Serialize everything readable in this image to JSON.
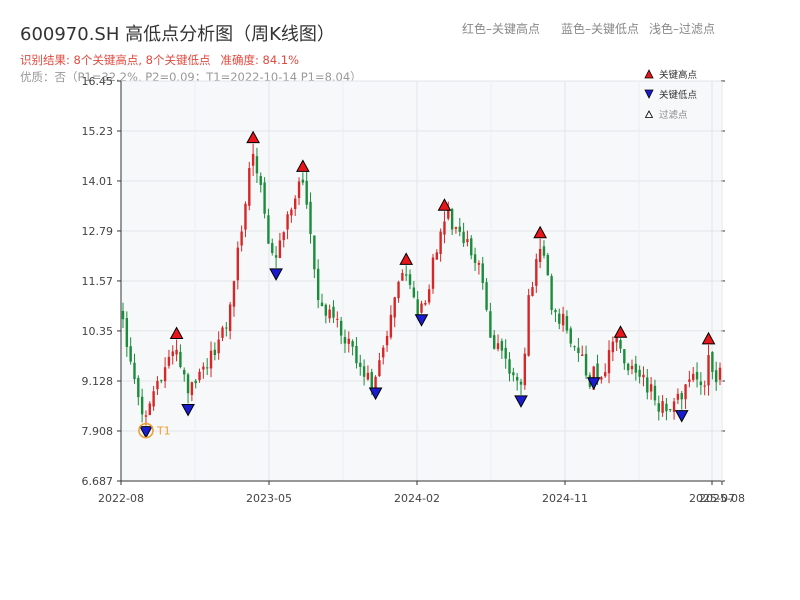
{
  "title": "600970.SH 高低点分析图（周K线图）",
  "legend_top": {
    "red": "红色–关键高点",
    "blue": "蓝色–关键低点",
    "light": "浅色–过滤点"
  },
  "subtitle": {
    "result": "识别结果: 8个关键高点, 8个关键低点",
    "accuracy": "准确度: 84.1%",
    "quality": "优质：否（P1=32.2%, P2=0.09；T1=2022-10-14 P1=8.04）"
  },
  "legend": {
    "high": "关键高点",
    "low": "关键低点",
    "filtered": "过滤点"
  },
  "colors": {
    "up": "#d62728",
    "down": "#1a8c3a",
    "high_marker": "#e8161b",
    "low_marker": "#1c1ccf",
    "t1_circle": "#f0a030"
  },
  "chart_data": {
    "type": "candlestick",
    "y_ticks": [
      "6.687",
      "7.908",
      "9.128",
      "10.35",
      "11.57",
      "12.79",
      "14.01",
      "15.23",
      "16.45"
    ],
    "ylim": [
      6.687,
      16.45
    ],
    "x_ticks": [
      "2022-08",
      "2023-05",
      "2024-02",
      "2024-11",
      "2025-07",
      "2025-08"
    ],
    "grid": true,
    "legend_position": "top-right",
    "weeks": 157,
    "t1_label": "T1",
    "t1": {
      "week": 6,
      "value": 8.04
    },
    "anchors": [
      [
        0,
        10.5
      ],
      [
        3,
        9.1
      ],
      [
        6,
        8.2
      ],
      [
        10,
        9.3
      ],
      [
        14,
        9.9
      ],
      [
        17,
        8.9
      ],
      [
        22,
        9.5
      ],
      [
        27,
        10.5
      ],
      [
        30,
        12.2
      ],
      [
        34,
        15.0
      ],
      [
        38,
        12.6
      ],
      [
        40,
        12.0
      ],
      [
        43,
        13.2
      ],
      [
        47,
        14.2
      ],
      [
        51,
        11.2
      ],
      [
        58,
        10.2
      ],
      [
        62,
        9.4
      ],
      [
        66,
        9.1
      ],
      [
        70,
        10.8
      ],
      [
        74,
        12.0
      ],
      [
        78,
        10.6
      ],
      [
        84,
        13.3
      ],
      [
        88,
        12.8
      ],
      [
        93,
        11.9
      ],
      [
        96,
        10.1
      ],
      [
        100,
        9.6
      ],
      [
        104,
        8.9
      ],
      [
        106,
        11.0
      ],
      [
        109,
        12.6
      ],
      [
        112,
        11.0
      ],
      [
        116,
        10.4
      ],
      [
        119,
        9.9
      ],
      [
        122,
        9.2
      ],
      [
        126,
        9.5
      ],
      [
        128,
        10.2
      ],
      [
        131,
        9.6
      ],
      [
        135,
        9.3
      ],
      [
        139,
        8.7
      ],
      [
        142,
        8.4
      ],
      [
        146,
        9.0
      ],
      [
        149,
        9.3
      ],
      [
        152,
        9.2
      ],
      [
        156,
        9.25
      ]
    ],
    "key_highs": [
      {
        "week": 14,
        "value": 10.14
      },
      {
        "week": 34,
        "value": 14.92
      },
      {
        "week": 47,
        "value": 14.22
      },
      {
        "week": 74,
        "value": 11.95
      },
      {
        "week": 84,
        "value": 13.27
      },
      {
        "week": 109,
        "value": 12.6
      },
      {
        "week": 130,
        "value": 10.17
      },
      {
        "week": 153,
        "value": 10.01
      }
    ],
    "key_lows": [
      {
        "week": 6,
        "value": 8.04
      },
      {
        "week": 17,
        "value": 8.58
      },
      {
        "week": 40,
        "value": 11.89
      },
      {
        "week": 66,
        "value": 8.98
      },
      {
        "week": 78,
        "value": 10.77
      },
      {
        "week": 104,
        "value": 8.79
      },
      {
        "week": 123,
        "value": 9.23
      },
      {
        "week": 146,
        "value": 8.43
      }
    ]
  }
}
